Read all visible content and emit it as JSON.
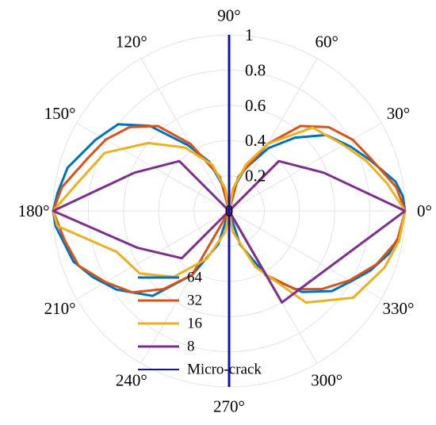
{
  "chart_data": {
    "type": "polar-line",
    "title": "",
    "angle_ticks": [
      "0°",
      "30°",
      "60°",
      "90°",
      "120°",
      "150°",
      "180°",
      "210°",
      "240°",
      "270°",
      "300°",
      "330°"
    ],
    "angle_tick_values": [
      0,
      30,
      60,
      90,
      120,
      150,
      180,
      210,
      240,
      270,
      300,
      330
    ],
    "radial_ticks": [
      "0",
      "0.2",
      "0.4",
      "0.6",
      "0.8",
      "1"
    ],
    "radial_tick_values": [
      0,
      0.2,
      0.4,
      0.6,
      0.8,
      1
    ],
    "rlim": [
      0,
      1
    ],
    "grid": true,
    "legend_position": "bottom-left",
    "theta_unit": "degrees",
    "series": [
      {
        "name": "64",
        "color": "#0072BD",
        "points": [
          [
            0,
            1
          ],
          [
            5,
            0.99
          ],
          [
            10,
            0.96
          ],
          [
            20,
            0.85
          ],
          [
            28,
            0.78
          ],
          [
            38,
            0.7
          ],
          [
            48,
            0.56
          ],
          [
            58,
            0.42
          ],
          [
            70,
            0.25
          ],
          [
            80,
            0.12
          ],
          [
            90,
            0
          ],
          [
            100,
            0.12
          ],
          [
            112,
            0.3
          ],
          [
            122,
            0.44
          ],
          [
            133,
            0.66
          ],
          [
            142,
            0.8
          ],
          [
            152,
            0.86
          ],
          [
            165,
            0.95
          ],
          [
            174,
            0.98
          ],
          [
            180,
            1
          ],
          [
            185,
            0.99
          ],
          [
            198,
            0.93
          ],
          [
            206,
            0.86
          ],
          [
            215,
            0.78
          ],
          [
            228,
            0.65
          ],
          [
            240,
            0.42
          ],
          [
            252,
            0.2
          ],
          [
            270,
            0
          ],
          [
            288,
            0.2
          ],
          [
            300,
            0.43
          ],
          [
            312,
            0.62
          ],
          [
            322,
            0.74
          ],
          [
            330,
            0.8
          ],
          [
            337,
            0.87
          ],
          [
            345,
            0.94
          ],
          [
            352,
            0.98
          ],
          [
            360,
            1
          ]
        ]
      },
      {
        "name": "32",
        "color": "#D95319",
        "points": [
          [
            0,
            1
          ],
          [
            8,
            0.96
          ],
          [
            20,
            0.86
          ],
          [
            30,
            0.81
          ],
          [
            40,
            0.74
          ],
          [
            50,
            0.63
          ],
          [
            60,
            0.44
          ],
          [
            75,
            0.2
          ],
          [
            90,
            0
          ],
          [
            105,
            0.2
          ],
          [
            120,
            0.44
          ],
          [
            130,
            0.63
          ],
          [
            140,
            0.74
          ],
          [
            150,
            0.81
          ],
          [
            160,
            0.86
          ],
          [
            172,
            0.96
          ],
          [
            180,
            1
          ],
          [
            190,
            0.95
          ],
          [
            200,
            0.91
          ],
          [
            210,
            0.81
          ],
          [
            220,
            0.72
          ],
          [
            230,
            0.58
          ],
          [
            240,
            0.42
          ],
          [
            270,
            0
          ],
          [
            300,
            0.42
          ],
          [
            310,
            0.58
          ],
          [
            320,
            0.69
          ],
          [
            330,
            0.79
          ],
          [
            340,
            0.89
          ],
          [
            350,
            0.97
          ],
          [
            360,
            1
          ]
        ]
      },
      {
        "name": "16",
        "color": "#EDB120",
        "points": [
          [
            0,
            1
          ],
          [
            10,
            0.91
          ],
          [
            20,
            0.83
          ],
          [
            30,
            0.75
          ],
          [
            45,
            0.67
          ],
          [
            60,
            0.44
          ],
          [
            70,
            0.28
          ],
          [
            80,
            0.13
          ],
          [
            90,
            0
          ],
          [
            100,
            0.13
          ],
          [
            110,
            0.28
          ],
          [
            125,
            0.44
          ],
          [
            140,
            0.6
          ],
          [
            155,
            0.78
          ],
          [
            170,
            0.88
          ],
          [
            180,
            1
          ],
          [
            185,
            0.98
          ],
          [
            200,
            0.68
          ],
          [
            215,
            0.62
          ],
          [
            230,
            0.49
          ],
          [
            245,
            0.3
          ],
          [
            260,
            0.12
          ],
          [
            270,
            0
          ],
          [
            280,
            0.12
          ],
          [
            295,
            0.35
          ],
          [
            310,
            0.68
          ],
          [
            325,
            0.86
          ],
          [
            340,
            0.94
          ],
          [
            350,
            0.98
          ],
          [
            360,
            1
          ]
        ]
      },
      {
        "name": "8",
        "color": "#7E2F8E",
        "points": [
          [
            0,
            1
          ],
          [
            22,
            0.58
          ],
          [
            45,
            0.4
          ],
          [
            90,
            0
          ],
          [
            135,
            0.4
          ],
          [
            158,
            0.58
          ],
          [
            180,
            1
          ],
          [
            202,
            0.56
          ],
          [
            225,
            0.38
          ],
          [
            270,
            0
          ],
          [
            300,
            0.6
          ],
          [
            360,
            1
          ]
        ]
      },
      {
        "name": "Micro-crack",
        "color": "#1010B8",
        "points": [
          [
            90,
            1
          ],
          [
            270,
            1
          ]
        ]
      }
    ]
  }
}
